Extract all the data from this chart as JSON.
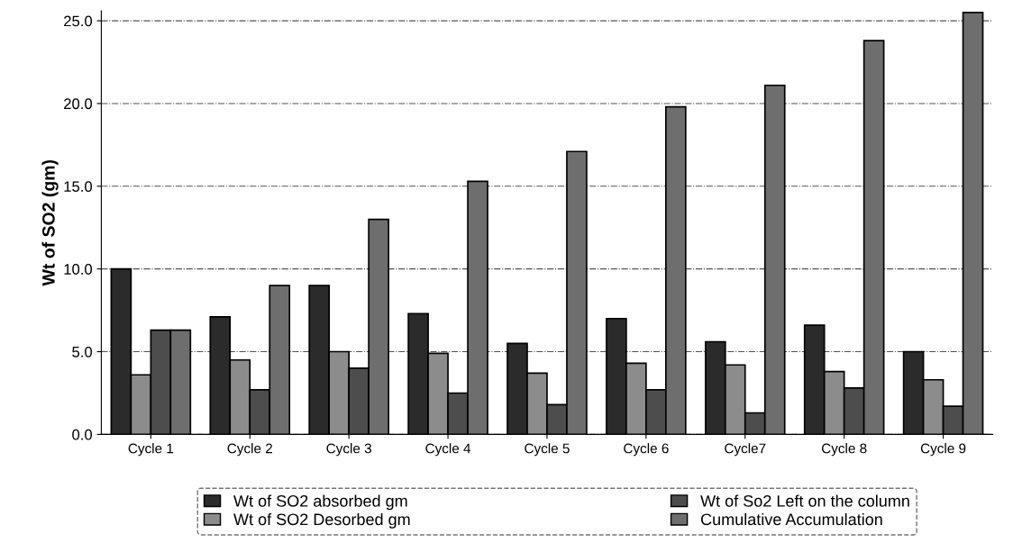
{
  "chart_data": {
    "type": "bar",
    "ylabel": "Wt of SO2 (gm)",
    "categories": [
      "Cycle 1",
      "Cycle 2",
      "Cycle 3",
      "Cycle 4",
      "Cycle 5",
      "Cycle 6",
      "Cycle7",
      "Cycle 8",
      "Cycle 9"
    ],
    "series": [
      {
        "name": "Wt of SO2 absorbed gm",
        "color": "#2b2b2b",
        "values": [
          10.0,
          7.1,
          9.0,
          7.3,
          5.5,
          7.0,
          5.6,
          6.6,
          5.0
        ]
      },
      {
        "name": "Wt of SO2 Desorbed gm",
        "color": "#8c8c8c",
        "values": [
          3.6,
          4.5,
          5.0,
          4.9,
          3.7,
          4.3,
          4.2,
          3.8,
          3.3
        ]
      },
      {
        "name": "Wt of So2 Left on the column",
        "color": "#4d4d4d",
        "values": [
          6.3,
          2.7,
          4.0,
          2.5,
          1.8,
          2.7,
          1.3,
          2.8,
          1.7
        ]
      },
      {
        "name": "Cumulative Accumulation",
        "color": "#6e6e6e",
        "values": [
          6.3,
          9.0,
          13.0,
          15.3,
          17.1,
          19.8,
          21.1,
          23.8,
          25.5
        ]
      }
    ],
    "ylim": [
      0,
      25.6
    ],
    "yticks": [
      {
        "value": 0,
        "label": "0.0"
      },
      {
        "value": 5,
        "label": "5.0"
      },
      {
        "value": 10,
        "label": "10.0"
      },
      {
        "value": 15,
        "label": "15.0"
      },
      {
        "value": 20,
        "label": "20.0"
      },
      {
        "value": 25,
        "label": "25.0"
      }
    ],
    "grid": "y",
    "legend": "bottom"
  }
}
